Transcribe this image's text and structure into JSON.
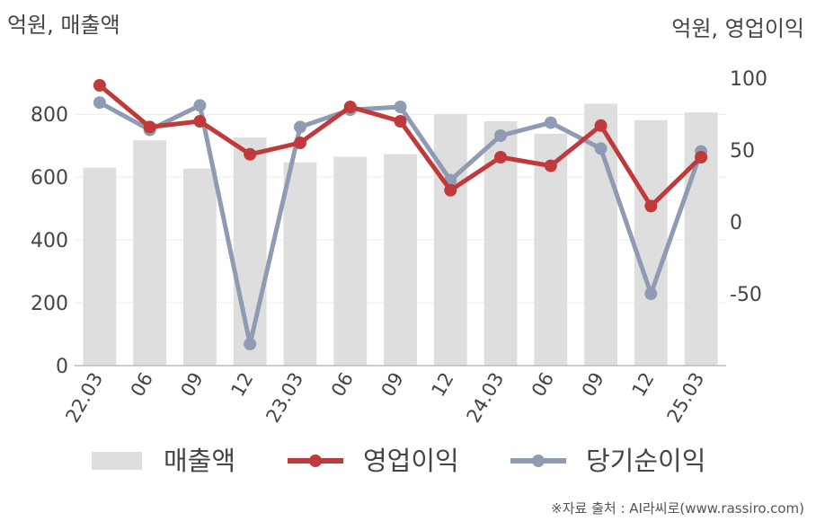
{
  "chart_data": {
    "type": "bar+line",
    "left_unit": "억원, 매출액",
    "right_unit": "억원, 영업이익",
    "categories": [
      "22.03",
      "06",
      "09",
      "12",
      "23.03",
      "06",
      "09",
      "12",
      "24.03",
      "06",
      "09",
      "12",
      "25.03"
    ],
    "left_axis": {
      "ticks": [
        "0",
        "200",
        "400",
        "600",
        "800"
      ],
      "range": [
        0,
        915
      ]
    },
    "right_axis": {
      "ticks": [
        "-50",
        "0",
        "50",
        "100"
      ],
      "range": [
        -100,
        100
      ]
    },
    "series": [
      {
        "name": "매출액",
        "type": "bar",
        "axis": "left",
        "color": "#dedede",
        "values": [
          630,
          717,
          627,
          726,
          647,
          665,
          673,
          800,
          778,
          738,
          834,
          781,
          806
        ]
      },
      {
        "name": "영업이익",
        "type": "line",
        "axis": "right",
        "color": "#c0393b",
        "values": [
          95,
          66,
          70,
          47,
          55,
          80,
          70,
          22,
          45,
          39,
          67,
          11,
          45
        ]
      },
      {
        "name": "당기순이익",
        "type": "line",
        "axis": "right",
        "color": "#8f9bb3",
        "values": [
          83,
          64,
          81,
          -85,
          66,
          78,
          80,
          29,
          60,
          69,
          51,
          -50,
          49
        ]
      }
    ],
    "grid": true,
    "legend_position": "bottom"
  },
  "source": "※자료 출처 : AI라씨로(www.rassiro.com)"
}
